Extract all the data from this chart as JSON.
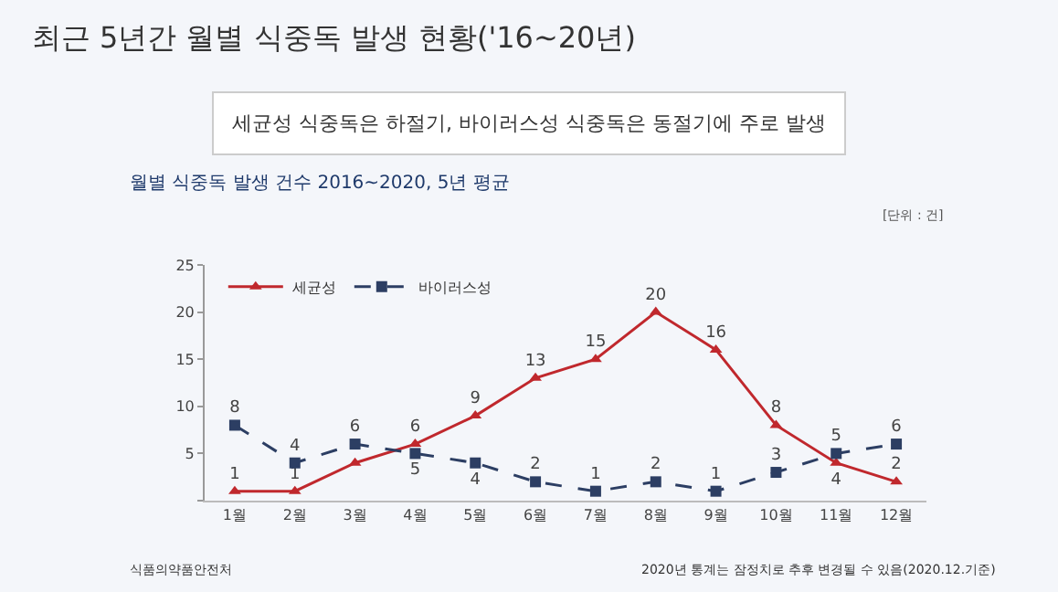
{
  "chart_data": {
    "type": "line",
    "title": "최근 5년간 월별 식중독 발생 현황('16~20년)",
    "subtitle": "세균성 식중독은 하절기, 바이러스성 식중독은 동절기에 주로 발생",
    "annotations": [
      "월별 식중독 발생 건수 2016~2020, 5년 평균",
      "[단위 : 건]",
      "2020년 통계는 잠정치로 추후 변경될 수 있음(2020.12.기준)",
      "식품의약품안전처"
    ],
    "categories": [
      "1월",
      "2월",
      "3월",
      "4월",
      "5월",
      "6월",
      "7월",
      "8월",
      "9월",
      "10월",
      "11월",
      "12월"
    ],
    "series": [
      {
        "name": "세균성",
        "color": "#c0282d",
        "marker": "triangle",
        "line_style": "solid",
        "values": [
          1,
          1,
          4,
          6,
          9,
          13,
          15,
          20,
          16,
          8,
          4,
          2
        ],
        "value_labels": [
          "1",
          "1",
          null,
          "6",
          "9",
          "13",
          "15",
          "20",
          "16",
          "8",
          "4",
          "2"
        ]
      },
      {
        "name": "바이러스성",
        "color": "#2c3e63",
        "marker": "square",
        "line_style": "dashed",
        "values": [
          8,
          4,
          6,
          5,
          4,
          2,
          1,
          2,
          1,
          3,
          5,
          6
        ],
        "value_labels": [
          "8",
          "4",
          "6",
          "5",
          "4",
          "2",
          "1",
          "2",
          "1",
          "3",
          "5",
          "6"
        ]
      }
    ],
    "ylim": [
      0,
      25
    ],
    "yticks": [
      {
        "value": 0,
        "label": null
      },
      5,
      10,
      15,
      20,
      25
    ],
    "grid": false,
    "legend": "top left"
  }
}
